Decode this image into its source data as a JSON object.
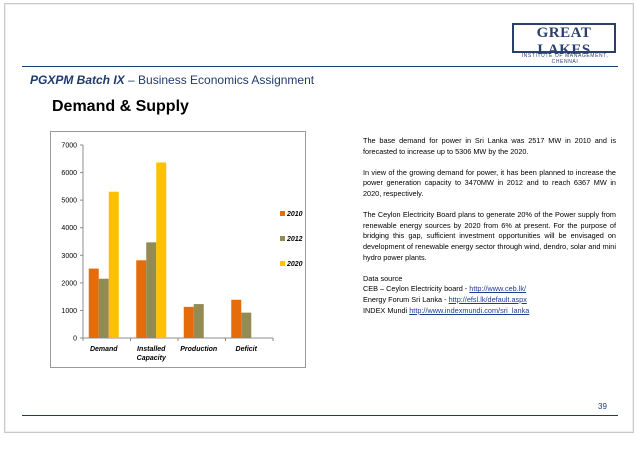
{
  "header": {
    "brand_main": "GREAT LAKES",
    "brand_sub": "INSTITUTE OF MANAGEMENT, CHENNAI",
    "title_bold": "PGXPM Batch IX",
    "title_rest": " – Business Economics Assignment"
  },
  "section_title": "Demand & Supply",
  "chart_data": {
    "type": "bar",
    "categories": [
      "Demand",
      "Installed Capacity",
      "Production",
      "Deficit"
    ],
    "series": [
      {
        "name": "2010",
        "color": "#e46c0a",
        "values": [
          2517,
          2818,
          1130,
          1387
        ]
      },
      {
        "name": "2012",
        "color": "#948a54",
        "values": [
          2150,
          3470,
          1230,
          920
        ]
      },
      {
        "name": "2020",
        "color": "#ffc000",
        "values": [
          5306,
          6367,
          null,
          null
        ]
      }
    ],
    "ylim": [
      0,
      7000
    ],
    "yticks": [
      0,
      1000,
      2000,
      3000,
      4000,
      5000,
      6000,
      7000
    ],
    "grid": false,
    "legend": "right"
  },
  "paragraphs": [
    "The base demand for power in Sri Lanka was 2517 MW in 2010 and is forecasted to increase up to 5306 MW by the 2020.",
    "In view of the growing demand for power, it has been planned to increase the power generation capacity to 3470MW in 2012 and to reach 6367 MW in 2020, respectively.",
    "The Ceylon Electricity Board plans to generate 20% of the Power supply from renewable energy sources by 2020 from 6% at present. For the purpose of bridging this gap, sufficient investment opportunities will be envisaged on development of renewable energy sector through wind, dendro, solar and mini hydro power plants."
  ],
  "sources": {
    "heading": "Data source",
    "items": [
      {
        "label": "CEB – Ceylon Electricity board - ",
        "url": "http://www.ceb.lk/"
      },
      {
        "label": "Energy Forum Sri Lanka - ",
        "url": "http://efsl.lk/default.aspx"
      },
      {
        "label": "INDEX Mundi ",
        "url": "http://www.indexmundi.com/sri_lanka"
      }
    ]
  },
  "page_number": "39"
}
